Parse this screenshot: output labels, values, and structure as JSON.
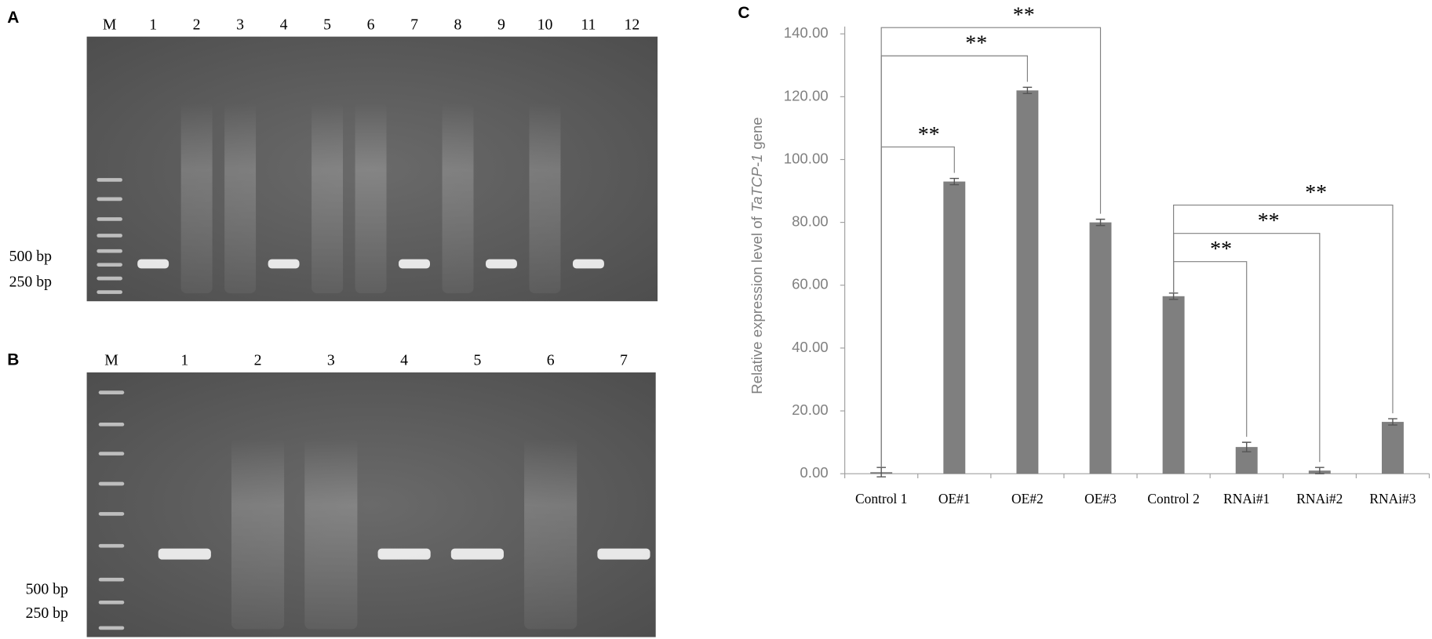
{
  "panels": {
    "a": {
      "letter": "A",
      "lanes": [
        "M",
        "1",
        "2",
        "3",
        "4",
        "5",
        "6",
        "7",
        "8",
        "9",
        "10",
        "11",
        "12"
      ],
      "markers": [
        "500 bp",
        "250 bp"
      ]
    },
    "b": {
      "letter": "B",
      "lanes": [
        "M",
        "1",
        "2",
        "3",
        "4",
        "5",
        "6",
        "7"
      ],
      "markers": [
        "500 bp",
        "250 bp"
      ]
    }
  },
  "chart_data": {
    "type": "bar",
    "panel_letter": "C",
    "y_label": {
      "before": "Relative expression level of",
      "italic": "TaTCP-1",
      "after": "gene"
    },
    "categories": [
      "Control 1",
      "OE#1",
      "OE#2",
      "OE#3",
      "Control 2",
      "RNAi#1",
      "RNAi#2",
      "RNAi#3"
    ],
    "values": [
      0.5,
      93,
      122,
      80,
      56.5,
      8.5,
      1,
      16.5
    ],
    "errors": [
      1.5,
      1,
      1,
      1,
      1,
      1.5,
      1,
      1
    ],
    "color": "#7f7f7f",
    "ylim": [
      0,
      140
    ],
    "yticks": [
      {
        "value": 0,
        "label": "0.00"
      },
      {
        "value": 20,
        "label": "20.00"
      },
      {
        "value": 40,
        "label": "40.00"
      },
      {
        "value": 60,
        "label": "60.00"
      },
      {
        "value": 80,
        "label": "80.00"
      },
      {
        "value": 100,
        "label": "100.00"
      },
      {
        "value": 120,
        "label": "120.00"
      },
      {
        "value": 140,
        "label": "140.00"
      }
    ],
    "significance": [
      {
        "from": 0,
        "to": 1,
        "label": "**"
      },
      {
        "from": 0,
        "to": 2,
        "label": "**"
      },
      {
        "from": 0,
        "to": 3,
        "label": "**"
      },
      {
        "from": 4,
        "to": 5,
        "label": "**"
      },
      {
        "from": 4,
        "to": 6,
        "label": "**"
      },
      {
        "from": 4,
        "to": 7,
        "label": "**"
      }
    ]
  }
}
